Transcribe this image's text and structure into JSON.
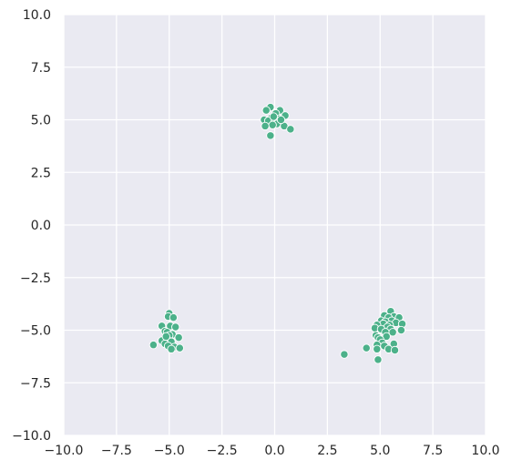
{
  "chart_data": {
    "type": "scatter",
    "title": "",
    "xlabel": "",
    "ylabel": "",
    "xlim": [
      -10,
      10
    ],
    "ylim": [
      -10,
      10
    ],
    "xticks": [
      -10,
      -7.5,
      -5,
      -2.5,
      0,
      2.5,
      5,
      7.5,
      10
    ],
    "yticks": [
      -10,
      -7.5,
      -5,
      -2.5,
      0,
      2.5,
      5,
      7.5,
      10
    ],
    "xtick_labels": [
      "−10.0",
      "−7.5",
      "−5.0",
      "−2.5",
      "0.0",
      "2.5",
      "5.0",
      "7.5",
      "10.0"
    ],
    "ytick_labels": [
      "−10.0",
      "−7.5",
      "−5.0",
      "−2.5",
      "0.0",
      "2.5",
      "5.0",
      "7.5",
      "10.0"
    ],
    "grid": true,
    "background_color": "#eaeaf2",
    "grid_color": "#ffffff",
    "point_color": "#4cb18a",
    "series": [
      {
        "points": [
          [
            -0.2,
            5.6
          ],
          [
            -0.4,
            5.45
          ],
          [
            0.25,
            5.45
          ],
          [
            0.05,
            5.3
          ],
          [
            0.5,
            5.2
          ],
          [
            -0.15,
            5.1
          ],
          [
            0.2,
            5.05
          ],
          [
            -0.5,
            5.0
          ],
          [
            -0.3,
            4.95
          ],
          [
            0.0,
            4.9
          ],
          [
            0.1,
            4.8
          ],
          [
            -0.1,
            4.75
          ],
          [
            -0.45,
            4.7
          ],
          [
            0.45,
            4.7
          ],
          [
            0.75,
            4.55
          ],
          [
            -0.2,
            4.25
          ],
          [
            0.3,
            5.0
          ],
          [
            -0.05,
            5.15
          ]
        ]
      },
      {
        "points": [
          [
            -5.0,
            -4.2
          ],
          [
            -5.05,
            -4.35
          ],
          [
            -4.8,
            -4.4
          ],
          [
            -5.35,
            -4.8
          ],
          [
            -4.95,
            -4.8
          ],
          [
            -4.7,
            -4.85
          ],
          [
            -5.2,
            -5.05
          ],
          [
            -5.1,
            -5.1
          ],
          [
            -4.85,
            -5.2
          ],
          [
            -5.0,
            -5.25
          ],
          [
            -4.55,
            -5.35
          ],
          [
            -5.1,
            -5.45
          ],
          [
            -5.35,
            -5.5
          ],
          [
            -4.9,
            -5.55
          ],
          [
            -5.2,
            -5.65
          ],
          [
            -5.75,
            -5.7
          ],
          [
            -5.05,
            -5.75
          ],
          [
            -4.75,
            -5.8
          ],
          [
            -4.5,
            -5.85
          ],
          [
            -4.9,
            -5.9
          ],
          [
            -5.15,
            -5.3
          ]
        ]
      },
      {
        "points": [
          [
            5.5,
            -4.1
          ],
          [
            5.2,
            -4.3
          ],
          [
            5.65,
            -4.35
          ],
          [
            5.9,
            -4.4
          ],
          [
            5.4,
            -4.4
          ],
          [
            5.05,
            -4.55
          ],
          [
            5.55,
            -4.55
          ],
          [
            5.25,
            -4.6
          ],
          [
            5.75,
            -4.65
          ],
          [
            6.05,
            -4.7
          ],
          [
            5.15,
            -4.7
          ],
          [
            4.85,
            -4.75
          ],
          [
            5.45,
            -4.75
          ],
          [
            5.35,
            -4.85
          ],
          [
            4.75,
            -4.9
          ],
          [
            5.05,
            -4.95
          ],
          [
            5.5,
            -4.95
          ],
          [
            6.0,
            -5.0
          ],
          [
            5.25,
            -5.1
          ],
          [
            5.6,
            -5.1
          ],
          [
            4.8,
            -5.25
          ],
          [
            4.9,
            -5.35
          ],
          [
            5.3,
            -5.3
          ],
          [
            5.0,
            -5.45
          ],
          [
            5.1,
            -5.6
          ],
          [
            5.65,
            -5.65
          ],
          [
            4.85,
            -5.7
          ],
          [
            5.2,
            -5.75
          ],
          [
            4.35,
            -5.85
          ],
          [
            4.85,
            -5.9
          ],
          [
            5.4,
            -5.9
          ],
          [
            5.7,
            -5.95
          ],
          [
            3.3,
            -6.15
          ],
          [
            4.9,
            -6.4
          ]
        ]
      }
    ]
  }
}
